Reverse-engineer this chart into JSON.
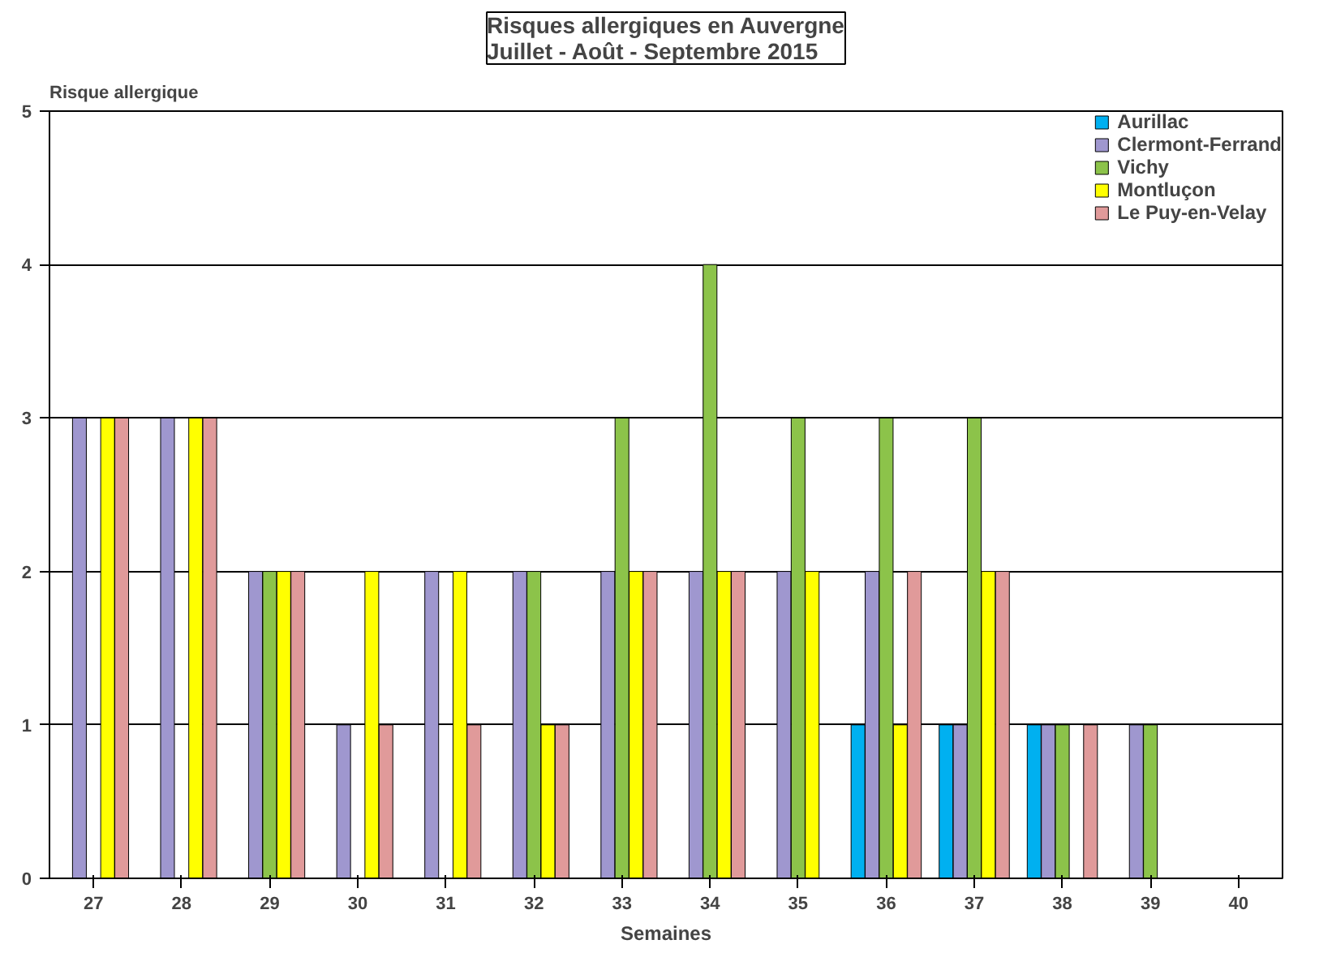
{
  "chart_data": {
    "type": "bar",
    "title": "Risques allergiques en Auvergne\nJuillet - Août - Septembre 2015",
    "xlabel": "Semaines",
    "ylabel": "Risque allergique",
    "categories": [
      "27",
      "28",
      "29",
      "30",
      "31",
      "32",
      "33",
      "34",
      "35",
      "36",
      "37",
      "38",
      "39",
      "40"
    ],
    "series": [
      {
        "name": "Aurillac",
        "color": "#00b0f0",
        "values": [
          null,
          null,
          null,
          null,
          null,
          null,
          null,
          null,
          null,
          1,
          1,
          1,
          null,
          null
        ]
      },
      {
        "name": "Clermont-Ferrand",
        "color": "#9f97cf",
        "values": [
          3,
          3,
          2,
          1,
          2,
          2,
          2,
          2,
          2,
          2,
          1,
          1,
          1,
          null
        ]
      },
      {
        "name": "Vichy",
        "color": "#8cc34a",
        "values": [
          null,
          null,
          2,
          null,
          null,
          2,
          3,
          4,
          3,
          3,
          3,
          1,
          1,
          null
        ]
      },
      {
        "name": "Montluçon",
        "color": "#ffff00",
        "values": [
          3,
          3,
          2,
          2,
          2,
          1,
          2,
          2,
          2,
          1,
          2,
          null,
          null,
          null
        ]
      },
      {
        "name": "Le Puy-en-Velay",
        "color": "#e09a9a",
        "values": [
          3,
          3,
          2,
          1,
          1,
          1,
          2,
          2,
          null,
          2,
          2,
          1,
          null,
          null
        ]
      }
    ],
    "ylim": [
      0,
      5
    ],
    "yticks": [
      0,
      1,
      2,
      3,
      4,
      5
    ],
    "grid": "y",
    "legend": "top right"
  }
}
